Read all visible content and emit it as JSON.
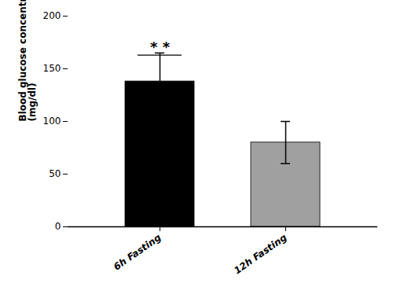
{
  "chart_data": {
    "type": "bar",
    "categories": [
      "6h Fasting",
      "12h Fasting"
    ],
    "values": [
      138,
      80
    ],
    "errors": [
      27,
      20
    ],
    "colors": [
      "#000000",
      "#a0a0a0"
    ],
    "ylabel": "Blood glucose concentration\n(mg/dl)",
    "ylim": [
      0,
      200
    ],
    "yticks": [
      0,
      50,
      100,
      150,
      200
    ],
    "grid": false,
    "annotations": [
      {
        "text": "* *",
        "x": "6h Fasting",
        "y": 163
      }
    ]
  }
}
